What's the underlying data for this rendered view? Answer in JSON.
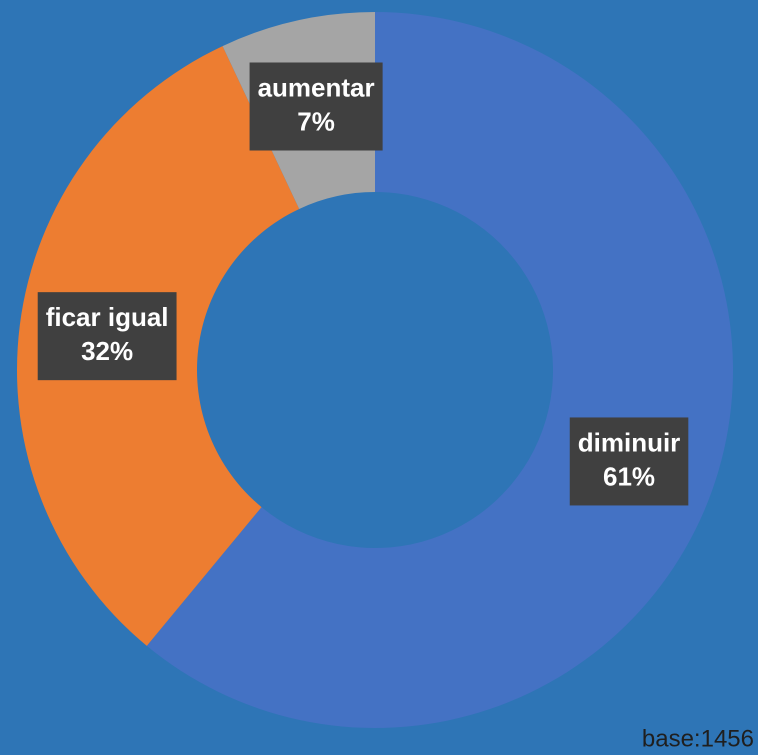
{
  "chart_data": {
    "type": "donut",
    "categories": [
      "diminuir",
      "ficar igual",
      "aumentar"
    ],
    "values": [
      61,
      32,
      7
    ],
    "value_labels": [
      "61%",
      "32%",
      "7%"
    ],
    "colors": [
      "#4472c4",
      "#ed7d31",
      "#a5a5a5"
    ],
    "annotation": "base:1456"
  }
}
